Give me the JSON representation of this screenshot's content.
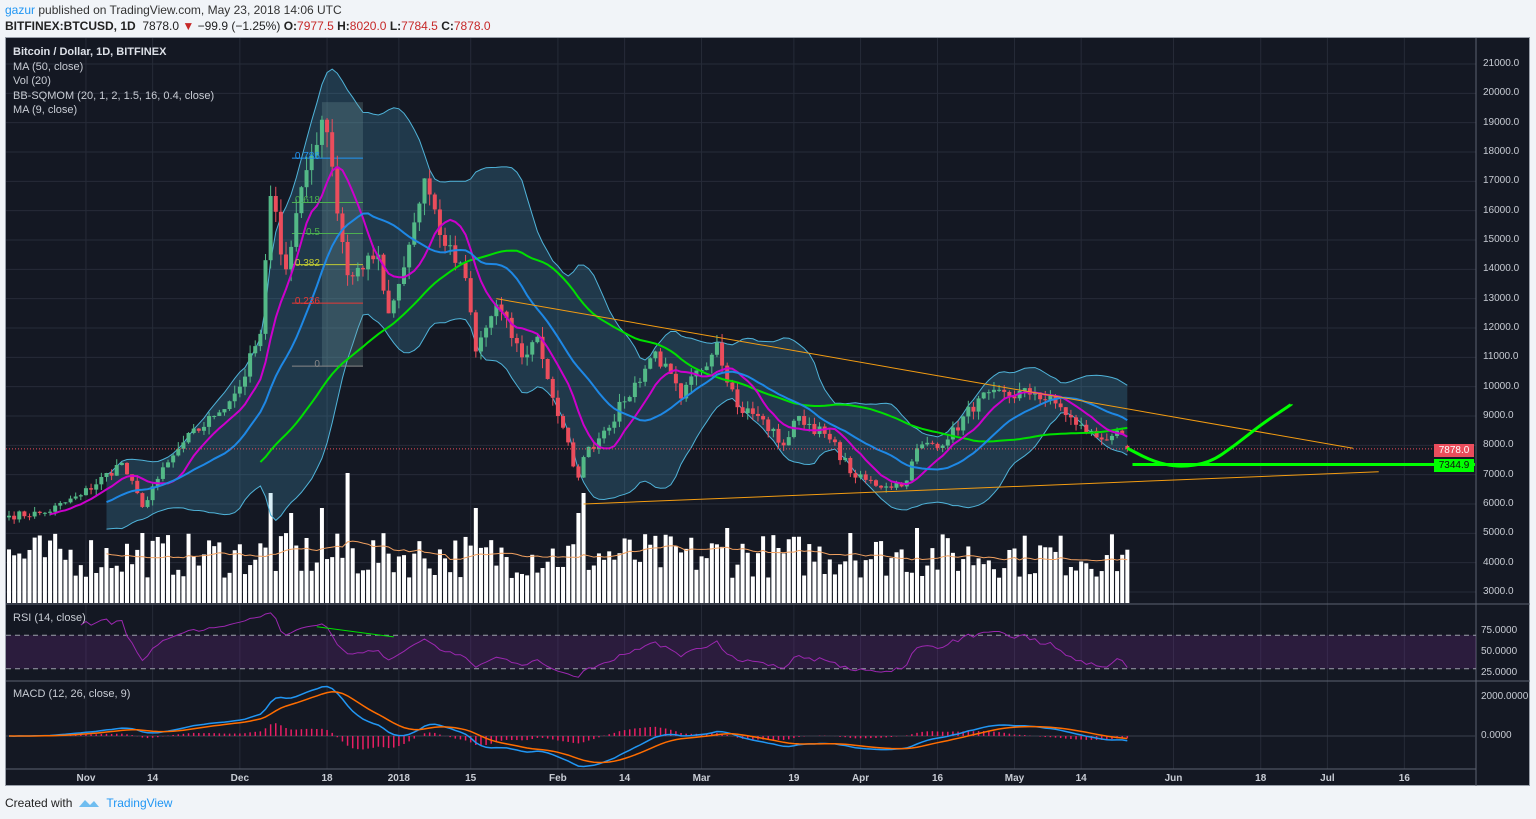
{
  "header": {
    "author": "gazur",
    "published": "published on TradingView.com, May 23, 2018 14:06 UTC",
    "symbol": "BITFINEX:BTCUSD, 1D",
    "last": "7878.0",
    "change": "−99.9 (−1.25%)",
    "o_label": "O:",
    "o": "7977.5",
    "h_label": "H:",
    "h": "8020.0",
    "l_label": "L:",
    "l": "7784.5",
    "c_label": "C:",
    "c": "7878.0"
  },
  "legend": {
    "title": "Bitcoin / Dollar, 1D, BITFINEX",
    "ma50": "MA (50, close)",
    "vol": "Vol (20)",
    "bb": "BB-SQMOM (20, 1, 2, 1.5, 16, 0.4, close)",
    "ma9": "MA (9, close)",
    "rsi": "RSI (14, close)",
    "macd": "MACD (12, 26, close, 9)"
  },
  "footer": {
    "created": "Created with",
    "brand": "TradingView"
  },
  "colors": {
    "up": "#53b987",
    "down": "#eb4d5c",
    "ma50": "#00e000",
    "ma9": "#cc00cc",
    "bb": "#4fb3d9",
    "rsi": "#9c27b0",
    "macd": "#2196f3",
    "signal": "#ff6d00",
    "hist": "#e91e63",
    "trend": "#f39c12",
    "projection": "#00ff00"
  },
  "chart_data": {
    "type": "candlestick",
    "title": "Bitcoin / Dollar, 1D, BITFINEX",
    "start_date": "2017-10-17",
    "end_date": "2018-05-23",
    "ylim": [
      2500,
      22000
    ],
    "close_keypoints": [
      [
        "2017-10-17",
        5600
      ],
      [
        "2017-10-24",
        5700
      ],
      [
        "2017-10-31",
        6300
      ],
      [
        "2017-11-08",
        7400
      ],
      [
        "2017-11-12",
        5900
      ],
      [
        "2017-11-14",
        6600
      ],
      [
        "2017-11-20",
        8100
      ],
      [
        "2017-11-26",
        9000
      ],
      [
        "2017-12-01",
        10000
      ],
      [
        "2017-12-05",
        11800
      ],
      [
        "2017-12-07",
        16500
      ],
      [
        "2017-12-10",
        14000
      ],
      [
        "2017-12-13",
        16800
      ],
      [
        "2017-12-17",
        19100
      ],
      [
        "2017-12-19",
        17500
      ],
      [
        "2017-12-22",
        13800
      ],
      [
        "2017-12-25",
        14000
      ],
      [
        "2017-12-28",
        14500
      ],
      [
        "2017-12-30",
        12500
      ],
      [
        "2018-01-01",
        13500
      ],
      [
        "2018-01-06",
        17100
      ],
      [
        "2018-01-10",
        14800
      ],
      [
        "2018-01-14",
        13700
      ],
      [
        "2018-01-16",
        11200
      ],
      [
        "2018-01-20",
        12800
      ],
      [
        "2018-01-25",
        11000
      ],
      [
        "2018-01-28",
        11700
      ],
      [
        "2018-02-01",
        9000
      ],
      [
        "2018-02-05",
        6900
      ],
      [
        "2018-02-06",
        7600
      ],
      [
        "2018-02-10",
        8500
      ],
      [
        "2018-02-14",
        9500
      ],
      [
        "2018-02-20",
        11200
      ],
      [
        "2018-02-25",
        9600
      ],
      [
        "2018-03-04",
        11500
      ],
      [
        "2018-03-08",
        9300
      ],
      [
        "2018-03-12",
        9000
      ],
      [
        "2018-03-17",
        8000
      ],
      [
        "2018-03-20",
        9000
      ],
      [
        "2018-03-26",
        8200
      ],
      [
        "2018-03-31",
        6900
      ],
      [
        "2018-04-06",
        6600
      ],
      [
        "2018-04-10",
        6800
      ],
      [
        "2018-04-12",
        7900
      ],
      [
        "2018-04-18",
        8200
      ],
      [
        "2018-04-24",
        9600
      ],
      [
        "2018-05-05",
        9800
      ],
      [
        "2018-05-10",
        9300
      ],
      [
        "2018-05-13",
        8700
      ],
      [
        "2018-05-18",
        8200
      ],
      [
        "2018-05-21",
        8500
      ],
      [
        "2018-05-23",
        7878
      ]
    ],
    "last_candle": {
      "open": 7977.5,
      "high": 8020.0,
      "low": 7784.5,
      "close": 7878.0
    },
    "volume_spikes": [
      [
        "2017-11-12",
        70
      ],
      [
        "2017-12-07",
        110
      ],
      [
        "2017-12-11",
        90
      ],
      [
        "2017-12-17",
        95
      ],
      [
        "2017-12-22",
        130
      ],
      [
        "2018-01-16",
        95
      ],
      [
        "2018-02-05",
        90
      ],
      [
        "2018-02-06",
        110
      ],
      [
        "2018-03-06",
        75
      ],
      [
        "2018-03-30",
        70
      ],
      [
        "2018-04-12",
        75
      ]
    ],
    "price_ticks": [
      "21000.0",
      "20000.0",
      "19000.0",
      "18000.0",
      "17000.0",
      "16000.0",
      "15000.0",
      "14000.0",
      "13000.0",
      "12000.0",
      "11000.0",
      "10000.0",
      "9000.0",
      "8000.0",
      "7000.0",
      "6000.0",
      "5000.0",
      "4000.0",
      "3000.0"
    ],
    "rsi_ticks": [
      "75.0000",
      "50.0000",
      "25.0000"
    ],
    "macd_ticks": [
      "2000.0000",
      "0.0000"
    ],
    "time_ticks": [
      [
        "Nov",
        "2017-11-01"
      ],
      [
        "14",
        "2017-11-14"
      ],
      [
        "Dec",
        "2017-12-01"
      ],
      [
        "18",
        "2017-12-18"
      ],
      [
        "2018",
        "2018-01-01"
      ],
      [
        "15",
        "2018-01-15"
      ],
      [
        "Feb",
        "2018-02-01"
      ],
      [
        "14",
        "2018-02-14"
      ],
      [
        "Mar",
        "2018-03-01"
      ],
      [
        "19",
        "2018-03-19"
      ],
      [
        "Apr",
        "2018-04-01"
      ],
      [
        "16",
        "2018-04-16"
      ],
      [
        "May",
        "2018-05-01"
      ],
      [
        "14",
        "2018-05-14"
      ],
      [
        "Jun",
        "2018-06-01"
      ],
      [
        "18",
        "2018-06-18"
      ],
      [
        "Jul",
        "2018-07-01"
      ],
      [
        "16",
        "2018-07-16"
      ]
    ],
    "price_badges": {
      "last": "7878.0",
      "target": "7344.9"
    },
    "fib_levels": [
      [
        "0.786",
        17790
      ],
      [
        "0.618",
        16280
      ],
      [
        "0.5",
        15220
      ],
      [
        "0.382",
        14160
      ],
      [
        "0.236",
        12850
      ],
      [
        "0",
        10700
      ]
    ],
    "trendlines": [
      {
        "name": "upper",
        "from": [
          "2018-01-20",
          13000
        ],
        "to": [
          "2018-07-06",
          7900
        ]
      },
      {
        "name": "lower",
        "from": [
          "2018-02-06",
          6000
        ],
        "to": [
          "2018-07-11",
          7100
        ]
      },
      {
        "name": "support",
        "from": [
          "2018-05-24",
          7344.9
        ],
        "to": [
          "2018-08-01",
          7344.9
        ]
      }
    ],
    "projection": [
      [
        "2018-05-23",
        7900
      ],
      [
        "2018-05-28",
        7450
      ],
      [
        "2018-06-02",
        7250
      ],
      [
        "2018-06-08",
        7400
      ],
      [
        "2018-06-13",
        8000
      ],
      [
        "2018-06-18",
        8700
      ],
      [
        "2018-06-24",
        9400
      ]
    ]
  }
}
